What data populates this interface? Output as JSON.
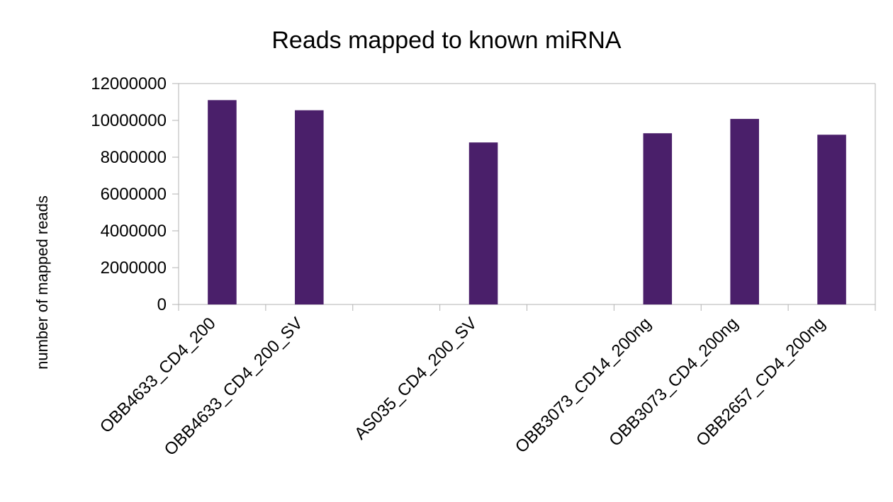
{
  "chart_data": {
    "type": "bar",
    "title": "Reads mapped to known miRNA",
    "ylabel": "number of mapped reads",
    "xlabel": "",
    "ylim": [
      0,
      12000000
    ],
    "yticks": [
      0,
      2000000,
      4000000,
      6000000,
      8000000,
      10000000,
      12000000
    ],
    "ytick_labels": [
      "0",
      "2000000",
      "4000000",
      "6000000",
      "8000000",
      "10000000",
      "12000000"
    ],
    "grid": false,
    "legend": "none",
    "bar_color": "#4a1f6a",
    "categories": [
      "OBB4633_CD4_200",
      "OBB4633_CD4_200_SV",
      "",
      "AS035_CD4_200_SV",
      "",
      "OBB3073_CD14_200ng",
      "OBB3073_CD4_200ng",
      "OBB2657_CD4_200ng"
    ],
    "values": [
      11100000,
      10550000,
      null,
      8800000,
      null,
      9300000,
      10080000,
      9220000
    ]
  }
}
